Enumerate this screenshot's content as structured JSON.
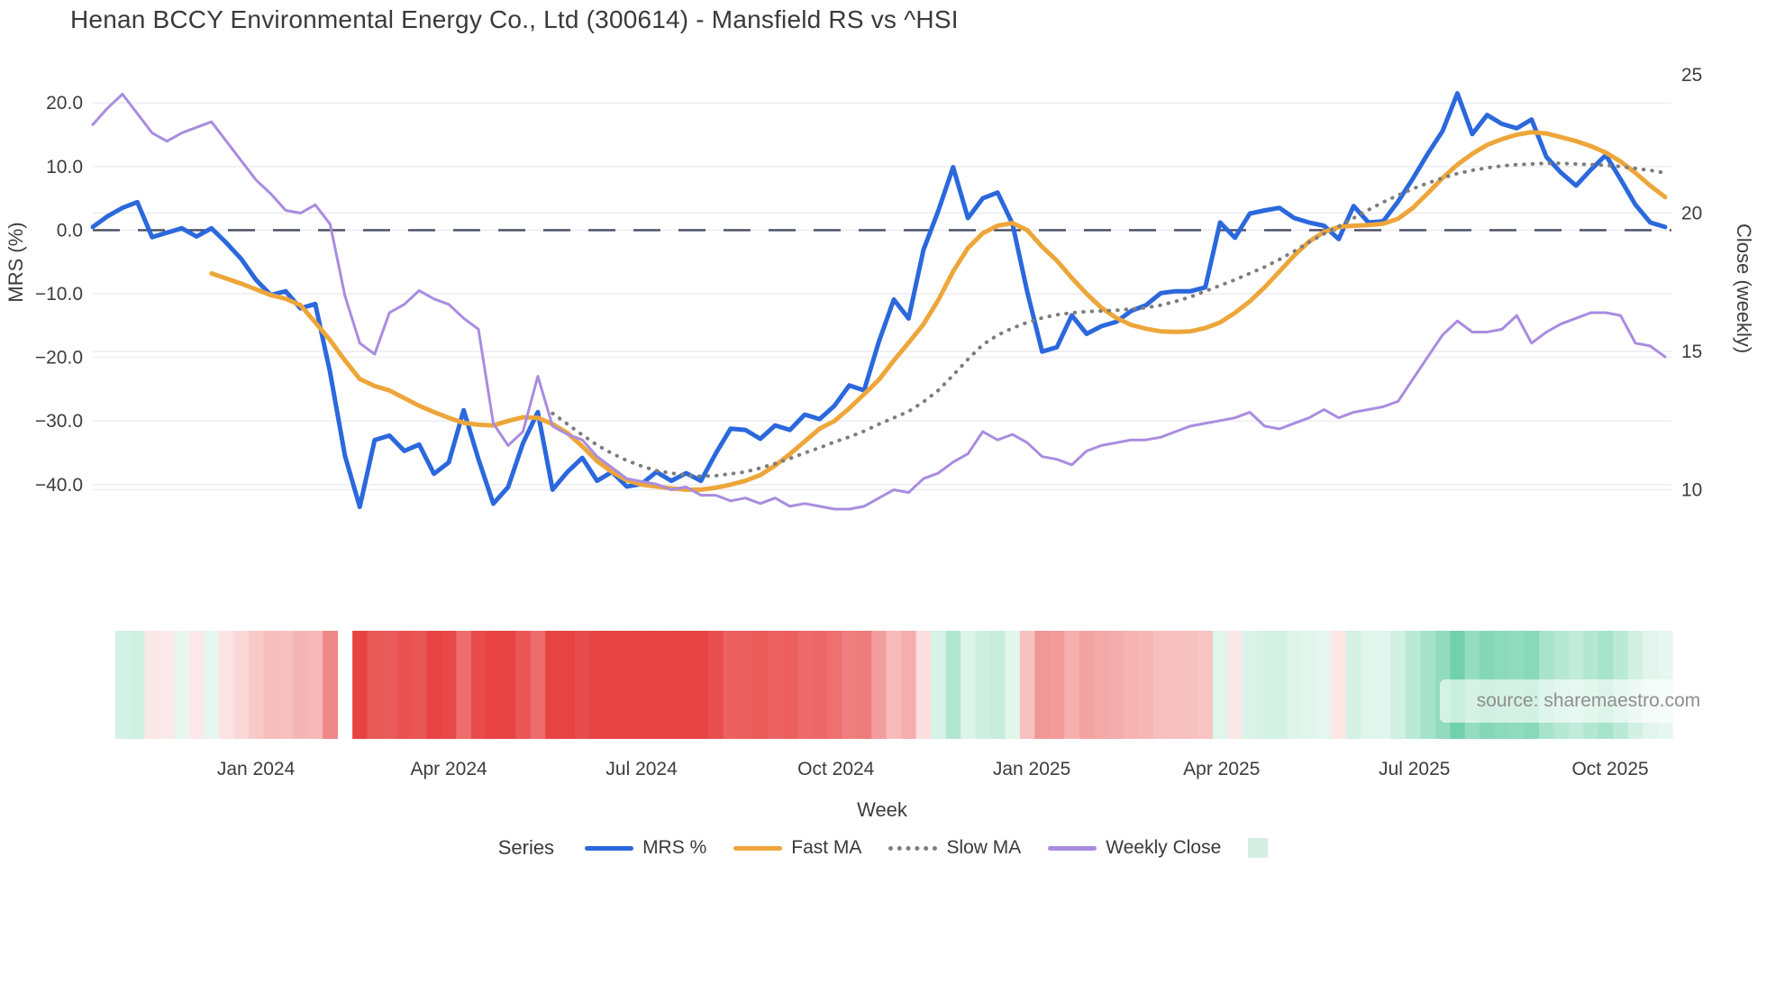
{
  "title": "Henan BCCY Environmental Energy Co., Ltd (300614) - Mansfield RS vs ^HSI",
  "source_note": "source: sharemaestro.com",
  "axes": {
    "left": {
      "title": "MRS (%)",
      "ticks": [
        {
          "label": "20.0",
          "v": 20
        },
        {
          "label": "10.0",
          "v": 10
        },
        {
          "label": "0.0",
          "v": 0
        },
        {
          "label": "−10.0",
          "v": -10
        },
        {
          "label": "−20.0",
          "v": -20
        },
        {
          "label": "−30.0",
          "v": -30
        },
        {
          "label": "−40.0",
          "v": -40
        }
      ]
    },
    "right": {
      "title": "Close (weekly)",
      "ticks": [
        {
          "label": "25",
          "v": 25
        },
        {
          "label": "20",
          "v": 20
        },
        {
          "label": "15",
          "v": 15
        },
        {
          "label": "10",
          "v": 10
        }
      ]
    },
    "x": {
      "title": "Week",
      "ticks": [
        {
          "label": "Jan 2024",
          "week": 11.0
        },
        {
          "label": "Apr 2024",
          "week": 24.0
        },
        {
          "label": "Jul 2024",
          "week": 37.0
        },
        {
          "label": "Oct 2024",
          "week": 50.1
        },
        {
          "label": "Jan 2025",
          "week": 63.3
        },
        {
          "label": "Apr 2025",
          "week": 76.1
        },
        {
          "label": "Jul 2025",
          "week": 89.1
        },
        {
          "label": "Oct 2025",
          "week": 102.3
        }
      ]
    }
  },
  "legend": {
    "title": "Series",
    "entries": [
      {
        "label": "MRS %",
        "type": "line",
        "color": "#2b68dc"
      },
      {
        "label": "Fast MA",
        "type": "line",
        "color": "#eda63a"
      },
      {
        "label": "Slow MA",
        "type": "dotted",
        "color": "#7d7d7d"
      },
      {
        "label": "Weekly Close",
        "type": "line",
        "color": "#a98ce0"
      },
      {
        "label": "",
        "type": "patch",
        "color": "#d5efe2"
      }
    ]
  },
  "colors": {
    "mrs": "#2b68dc",
    "fast_ma": "#eda63a",
    "slow_ma": "#7d7d7d",
    "weekly_close": "#a98ce0",
    "baseline": "#464a5f",
    "gridline": "#ebebf2",
    "heat_positive": "#63cda4",
    "heat_negative": "#e84343",
    "tick_text": "#3d3d3d"
  },
  "chart_data": {
    "type": "line",
    "title": "Henan BCCY Environmental Energy Co., Ltd (300614) - Mansfield RS vs ^HSI",
    "xlabel": "Week",
    "ylabel_left": "MRS (%)",
    "ylabel_right": "Close (weekly)",
    "ylim_left": [
      -47,
      25
    ],
    "ylim_right": [
      7.5,
      25
    ],
    "grid": true,
    "legend_position": "bottom",
    "baseline": {
      "value": 0,
      "axis": "left",
      "style": "dashed"
    },
    "x_dates": [
      "2023-10-16",
      "2023-10-23",
      "2023-10-30",
      "2023-11-06",
      "2023-11-13",
      "2023-11-20",
      "2023-11-27",
      "2023-12-04",
      "2023-12-11",
      "2023-12-18",
      "2023-12-25",
      "2024-01-01",
      "2024-01-08",
      "2024-01-15",
      "2024-01-22",
      "2024-01-29",
      "2024-02-05",
      "2024-02-12",
      "2024-02-19",
      "2024-02-26",
      "2024-03-04",
      "2024-03-11",
      "2024-03-18",
      "2024-03-25",
      "2024-04-01",
      "2024-04-08",
      "2024-04-15",
      "2024-04-22",
      "2024-04-29",
      "2024-05-06",
      "2024-05-13",
      "2024-05-20",
      "2024-05-27",
      "2024-06-03",
      "2024-06-10",
      "2024-06-17",
      "2024-06-24",
      "2024-07-01",
      "2024-07-08",
      "2024-07-15",
      "2024-07-22",
      "2024-07-29",
      "2024-08-05",
      "2024-08-12",
      "2024-08-19",
      "2024-08-26",
      "2024-09-02",
      "2024-09-09",
      "2024-09-16",
      "2024-09-23",
      "2024-09-30",
      "2024-10-07",
      "2024-10-14",
      "2024-10-21",
      "2024-10-28",
      "2024-11-04",
      "2024-11-11",
      "2024-11-18",
      "2024-11-25",
      "2024-12-02",
      "2024-12-09",
      "2024-12-16",
      "2024-12-23",
      "2024-12-30",
      "2025-01-06",
      "2025-01-13",
      "2025-01-20",
      "2025-01-27",
      "2025-02-03",
      "2025-02-10",
      "2025-02-17",
      "2025-02-24",
      "2025-03-03",
      "2025-03-10",
      "2025-03-17",
      "2025-03-24",
      "2025-03-31",
      "2025-04-07",
      "2025-04-14",
      "2025-04-21",
      "2025-04-28",
      "2025-05-05",
      "2025-05-12",
      "2025-05-19",
      "2025-05-26",
      "2025-06-02",
      "2025-06-09",
      "2025-06-16",
      "2025-06-23",
      "2025-06-30",
      "2025-07-07",
      "2025-07-14",
      "2025-07-21",
      "2025-07-28",
      "2025-08-04",
      "2025-08-11",
      "2025-08-18",
      "2025-08-25",
      "2025-09-01",
      "2025-09-08",
      "2025-09-15",
      "2025-09-22",
      "2025-09-29",
      "2025-10-06",
      "2025-10-13",
      "2025-10-20",
      "2025-10-27"
    ],
    "series": [
      {
        "name": "MRS %",
        "axis": "left",
        "color": "#2b68dc",
        "width": 5,
        "dash": "solid",
        "values": [
          0.5,
          2.2,
          3.5,
          4.4,
          -1.1,
          -0.4,
          0.3,
          -1.0,
          0.3,
          -2.0,
          -4.5,
          -7.8,
          -10.2,
          -9.6,
          -12.3,
          -11.6,
          -22.4,
          -35.5,
          -43.5,
          -33.0,
          -32.3,
          -34.7,
          -33.7,
          -38.3,
          -36.5,
          -28.3,
          -36.0,
          -43.0,
          -40.4,
          -33.5,
          -28.6,
          -40.8,
          -38.0,
          -35.8,
          -39.4,
          -38.0,
          -40.3,
          -39.9,
          -38.0,
          -39.4,
          -38.2,
          -39.4,
          -35.1,
          -31.2,
          -31.4,
          -32.8,
          -30.7,
          -31.4,
          -29.0,
          -29.7,
          -27.6,
          -24.4,
          -25.2,
          -17.5,
          -10.9,
          -13.9,
          -3.1,
          3.0,
          9.9,
          1.9,
          5.0,
          5.9,
          1.0,
          -9.7,
          -19.1,
          -18.4,
          -13.4,
          -16.3,
          -15.1,
          -14.4,
          -12.7,
          -11.8,
          -9.9,
          -9.6,
          -9.6,
          -9.0,
          1.2,
          -1.2,
          2.6,
          3.1,
          3.5,
          1.9,
          1.2,
          0.7,
          -1.4,
          3.8,
          1.2,
          1.4,
          4.5,
          8.1,
          12.0,
          15.6,
          21.5,
          15.1,
          18.1,
          16.7,
          16.0,
          17.4,
          11.5,
          9.0,
          7.0,
          9.5,
          11.8,
          8.0,
          4.0,
          1.2,
          0.5
        ]
      },
      {
        "name": "Fast MA",
        "axis": "left",
        "color": "#eda63a",
        "width": 5,
        "dash": "solid",
        "values": [
          null,
          null,
          null,
          null,
          null,
          null,
          null,
          null,
          -6.8,
          -7.6,
          -8.4,
          -9.3,
          -10.2,
          -10.8,
          -11.8,
          -14.5,
          -17.3,
          -20.5,
          -23.4,
          -24.5,
          -25.2,
          -26.4,
          -27.6,
          -28.6,
          -29.5,
          -30.3,
          -30.6,
          -30.7,
          -30.0,
          -29.4,
          -29.5,
          -30.5,
          -31.9,
          -34.0,
          -36.3,
          -38.0,
          -39.3,
          -40.0,
          -40.3,
          -40.6,
          -40.8,
          -40.8,
          -40.5,
          -40.0,
          -39.4,
          -38.5,
          -37.0,
          -35.2,
          -33.2,
          -31.2,
          -30.0,
          -28.0,
          -25.8,
          -23.5,
          -20.5,
          -17.7,
          -14.8,
          -11.0,
          -6.5,
          -2.8,
          -0.5,
          0.7,
          1.1,
          0.0,
          -2.6,
          -4.8,
          -7.5,
          -10.0,
          -12.2,
          -13.8,
          -14.9,
          -15.5,
          -15.9,
          -16.0,
          -15.9,
          -15.4,
          -14.5,
          -13.0,
          -11.2,
          -9.0,
          -6.5,
          -4.0,
          -1.8,
          -0.3,
          0.5,
          0.7,
          0.8,
          1.0,
          1.8,
          3.5,
          5.8,
          8.2,
          10.3,
          12.0,
          13.4,
          14.3,
          15.0,
          15.4,
          15.2,
          14.6,
          14.0,
          13.2,
          12.2,
          10.8,
          9.0,
          7.0,
          5.2
        ]
      },
      {
        "name": "Slow MA",
        "axis": "left",
        "color": "#7d7d7d",
        "width": 4,
        "dash": "dot",
        "values": [
          null,
          null,
          null,
          null,
          null,
          null,
          null,
          null,
          null,
          null,
          null,
          null,
          null,
          null,
          null,
          null,
          null,
          null,
          null,
          null,
          null,
          null,
          null,
          null,
          null,
          null,
          null,
          null,
          null,
          null,
          null,
          -28.8,
          -30.5,
          -32.2,
          -33.8,
          -35.1,
          -36.2,
          -37.1,
          -37.8,
          -38.2,
          -38.5,
          -38.7,
          -38.6,
          -38.3,
          -38.0,
          -37.4,
          -36.7,
          -35.9,
          -35.0,
          -34.2,
          -33.3,
          -32.5,
          -31.6,
          -30.5,
          -29.5,
          -28.5,
          -27.0,
          -25.2,
          -22.8,
          -20.3,
          -18.0,
          -16.5,
          -15.4,
          -14.5,
          -13.8,
          -13.3,
          -13.0,
          -12.8,
          -12.7,
          -12.6,
          -12.4,
          -12.2,
          -11.8,
          -11.2,
          -10.5,
          -9.6,
          -8.7,
          -7.8,
          -6.8,
          -5.8,
          -4.6,
          -3.3,
          -1.9,
          -0.6,
          0.6,
          1.9,
          3.2,
          4.4,
          5.5,
          6.5,
          7.4,
          8.2,
          8.9,
          9.4,
          9.8,
          10.1,
          10.3,
          10.4,
          10.5,
          10.5,
          10.4,
          10.3,
          10.2,
          10.0,
          9.7,
          9.4,
          9.0
        ]
      },
      {
        "name": "Weekly Close",
        "axis": "right",
        "color": "#a98ce0",
        "width": 3,
        "dash": "solid",
        "values": [
          23.2,
          23.8,
          24.3,
          23.6,
          22.9,
          22.6,
          22.9,
          23.1,
          23.3,
          22.6,
          21.9,
          21.2,
          20.7,
          20.1,
          20.0,
          20.3,
          19.6,
          17.0,
          15.3,
          14.9,
          16.4,
          16.7,
          17.2,
          16.9,
          16.7,
          16.2,
          15.8,
          12.4,
          11.6,
          12.1,
          14.1,
          12.3,
          12.0,
          11.8,
          11.2,
          10.8,
          10.4,
          10.3,
          10.2,
          10.0,
          10.1,
          9.8,
          9.8,
          9.6,
          9.7,
          9.5,
          9.7,
          9.4,
          9.5,
          9.4,
          9.3,
          9.3,
          9.4,
          9.7,
          10.0,
          9.9,
          10.4,
          10.6,
          11.0,
          11.3,
          12.1,
          11.8,
          12.0,
          11.7,
          11.2,
          11.1,
          10.9,
          11.4,
          11.6,
          11.7,
          11.8,
          11.8,
          11.9,
          12.1,
          12.3,
          12.4,
          12.5,
          12.6,
          12.8,
          12.3,
          12.2,
          12.4,
          12.6,
          12.9,
          12.6,
          12.8,
          12.9,
          13.0,
          13.2,
          14.0,
          14.8,
          15.6,
          16.1,
          15.7,
          15.7,
          15.8,
          16.3,
          15.3,
          15.7,
          16.0,
          16.2,
          16.4,
          16.4,
          16.3,
          15.3,
          15.2,
          14.8
        ]
      }
    ],
    "heatmap_strip": {
      "metric": "MRS %",
      "description": "weekly cells colored green for positive MRS, red for negative, intensity by magnitude",
      "start_week": 2,
      "gap_week": 17,
      "positive_color": "#63cda4",
      "negative_color": "#e84343"
    }
  }
}
